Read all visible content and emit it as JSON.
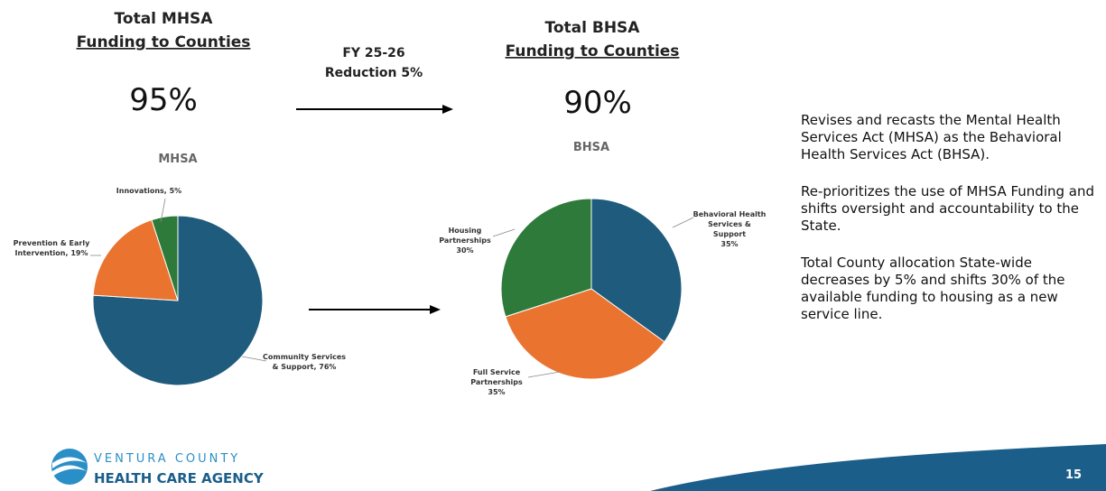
{
  "left_heading": {
    "line1": "Total MHSA",
    "line2": "Funding to Counties",
    "percent": "95%"
  },
  "right_heading": {
    "line1": "Total BHSA",
    "line2": "Funding to Counties",
    "percent": "90%"
  },
  "arrow_label": {
    "line1": "FY 25-26",
    "line2": "Reduction 5%"
  },
  "notes": [
    "Revises and recasts the Mental Health Services Act (MHSA) as the Behavioral Health Services Act (BHSA).",
    "Re-prioritizes the use of MHSA Funding and shifts oversight and accountability to the State.",
    "Total County allocation State-wide decreases by 5% and shifts 30% of the available funding to housing as a new service line."
  ],
  "logo": {
    "line1": "VENTURA COUNTY",
    "line2": "HEALTH CARE AGENCY"
  },
  "page_number": "15",
  "chart_data": [
    {
      "type": "pie",
      "title": "MHSA",
      "values": [
        76,
        19,
        5
      ],
      "value_labels": [
        "Community Services\n& Support, 76%",
        "Prevention & Early\nIntervention, 19%",
        "Innovations, 5%"
      ],
      "colors": [
        "#1f5b7c",
        "#ea7330",
        "#2d7a3a"
      ]
    },
    {
      "type": "pie",
      "title": "BHSA",
      "values": [
        35,
        35,
        30
      ],
      "value_labels": [
        "Behavioral Health\nServices &\nSupport\n35%",
        "Full Service\nPartnerships\n35%",
        "Housing\nPartnerships\n30%"
      ],
      "colors": [
        "#1f5b7c",
        "#ea7330",
        "#2d7a3a"
      ]
    }
  ]
}
